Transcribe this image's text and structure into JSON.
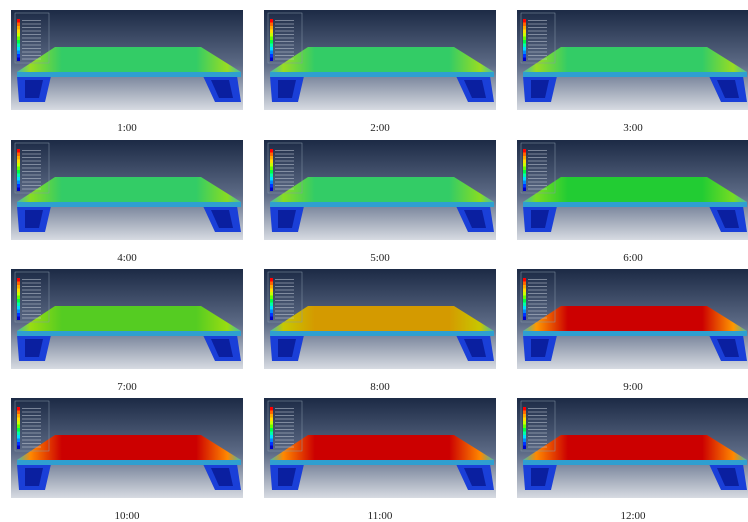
{
  "panels": [
    {
      "caption": "1:00"
    },
    {
      "caption": "2:00"
    },
    {
      "caption": "3:00"
    },
    {
      "caption": "4:00"
    },
    {
      "caption": "5:00"
    },
    {
      "caption": "6:00"
    },
    {
      "caption": "7:00"
    },
    {
      "caption": "8:00"
    },
    {
      "caption": "9:00"
    },
    {
      "caption": "10:00"
    },
    {
      "caption": "11:00"
    },
    {
      "caption": "12:00"
    }
  ]
}
